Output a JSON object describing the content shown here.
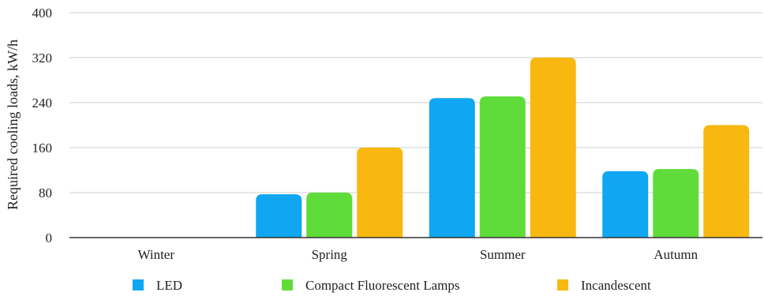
{
  "chart_data": {
    "type": "bar",
    "title": "",
    "xlabel": "",
    "ylabel": "Required cooling loads, kW/h",
    "ylim": [
      0,
      400
    ],
    "yticks": [
      0,
      80,
      160,
      240,
      320,
      400
    ],
    "grid": true,
    "legend_position": "bottom",
    "categories": [
      "Winter",
      "Spring",
      "Summer",
      "Autumn"
    ],
    "series": [
      {
        "name": "LED",
        "color": "#0fa6f2",
        "values": [
          0,
          77,
          248,
          118
        ]
      },
      {
        "name": "Compact Fluorescent Lamps",
        "color": "#5fdc3a",
        "values": [
          0,
          80,
          251,
          122
        ]
      },
      {
        "name": "Incandescent",
        "color": "#f9b810",
        "values": [
          0,
          160,
          320,
          200
        ]
      }
    ]
  }
}
